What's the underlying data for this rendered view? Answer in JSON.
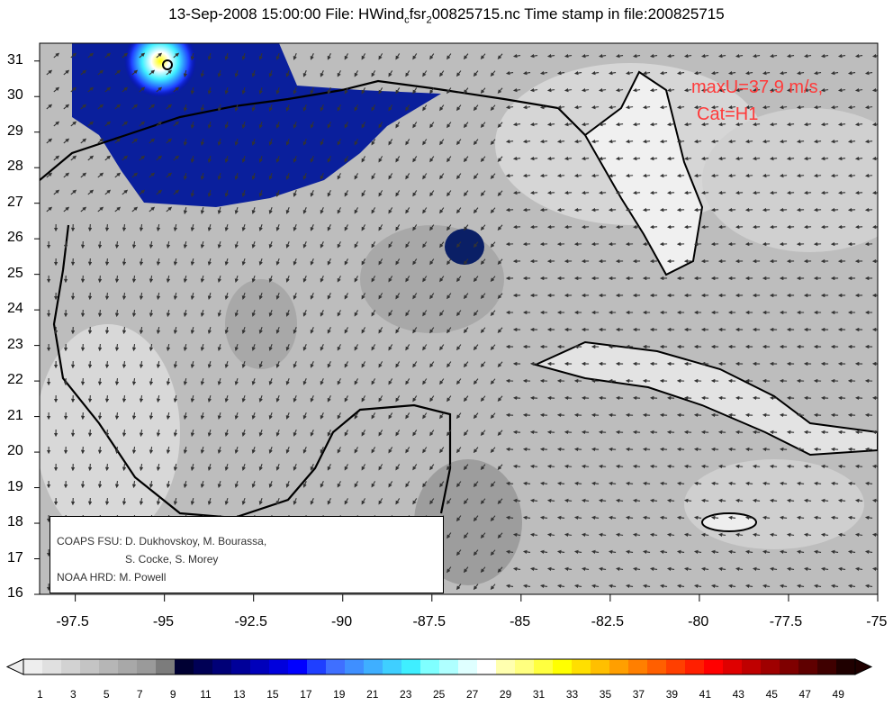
{
  "title": {
    "prefix": "13-Sep-2008 15:00:00 File: HWind",
    "sub1": "c",
    "mid": "fsr",
    "sub2": "2",
    "suffix": "00825715.nc Time stamp in file:200825715"
  },
  "annotation": {
    "maxu": "maxU=37.9 m/s,",
    "cat": "Cat=H1",
    "color": "#ff3b3b"
  },
  "credits": {
    "line1": "COAPS FSU: D. Dukhovskoy, M. Bourassa,",
    "line2": "S. Cocke, S. Morey",
    "line3": "NOAA HRD:  M. Powell"
  },
  "axes": {
    "x_ticks": [
      "-97.5",
      "-95",
      "-92.5",
      "-90",
      "-87.5",
      "-85",
      "-82.5",
      "-80",
      "-77.5",
      "-75"
    ],
    "y_ticks": [
      "31",
      "30",
      "29",
      "28",
      "27",
      "26",
      "25",
      "24",
      "23",
      "22",
      "21",
      "20",
      "19",
      "18",
      "17",
      "16"
    ],
    "xlim": [
      -98.5,
      -75
    ],
    "ylim": [
      16,
      31.5
    ]
  },
  "colorbar": {
    "labels": [
      "1",
      "3",
      "5",
      "7",
      "9",
      "11",
      "13",
      "15",
      "17",
      "19",
      "21",
      "23",
      "25",
      "27",
      "29",
      "31",
      "33",
      "35",
      "37",
      "39",
      "41",
      "43",
      "45",
      "47",
      "49"
    ],
    "range": [
      0,
      50
    ],
    "colors": [
      "#eeeeee",
      "#e0e0e0",
      "#d2d2d2",
      "#c4c4c4",
      "#b6b6b6",
      "#a8a8a8",
      "#9a9a9a",
      "#7c7c7c",
      "#000033",
      "#000055",
      "#000077",
      "#000099",
      "#0000bb",
      "#0000dd",
      "#0000ff",
      "#1f3fff",
      "#3f6fff",
      "#3f8fff",
      "#3fafff",
      "#3fcfff",
      "#3fefff",
      "#7fffff",
      "#afffff",
      "#dfffff",
      "#ffffff",
      "#ffffaf",
      "#ffff7f",
      "#ffff3f",
      "#ffff00",
      "#ffdf00",
      "#ffbf00",
      "#ff9f00",
      "#ff7f00",
      "#ff5f00",
      "#ff3f00",
      "#ff1f00",
      "#ff0000",
      "#df0000",
      "#bf0000",
      "#9f0000",
      "#7f0000",
      "#5f0000",
      "#3f0000",
      "#1f0000"
    ]
  }
}
